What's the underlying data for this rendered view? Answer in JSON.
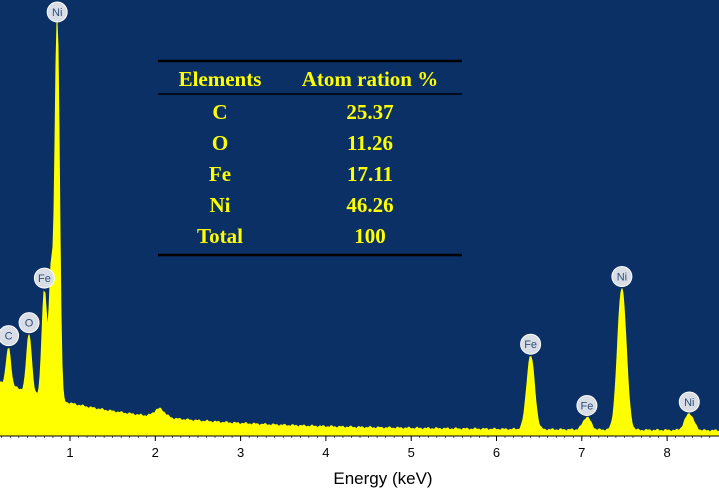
{
  "colors": {
    "plot_background": "#0a3066",
    "spectrum": "#ffff00",
    "table_text": "#ffff00",
    "table_rules": "#000000",
    "peak_badge": "#d8dde6",
    "axis_text": "#000000"
  },
  "chart_data": {
    "type": "area",
    "xlabel": "Energy (keV)",
    "ylabel": "",
    "xlim": [
      -0.1,
      8.6
    ],
    "xticks": [
      1,
      2,
      3,
      4,
      5,
      6,
      7,
      8
    ],
    "tick_labels": [
      "1",
      "2",
      "3",
      "4",
      "5",
      "6",
      "7",
      "8"
    ],
    "grid": false,
    "spectrum": {
      "background": {
        "base": 8,
        "decay_amp": 45,
        "decay_tau": 1.3,
        "tail_slope": 0.9
      },
      "peaks": [
        {
          "label": "C",
          "energy": 0.28,
          "height": 35,
          "sigma": 0.025
        },
        {
          "label": "O",
          "energy": 0.52,
          "height": 55,
          "sigma": 0.028
        },
        {
          "label": "Fe",
          "energy": 0.7,
          "height": 100,
          "sigma": 0.028
        },
        {
          "label": "Ni",
          "energy": 0.85,
          "height": 360,
          "sigma": 0.026
        },
        {
          "label": "",
          "energy": 0.78,
          "height": 120,
          "sigma": 0.025
        },
        {
          "label": "",
          "energy": 2.05,
          "height": 8,
          "sigma": 0.06
        },
        {
          "label": "Fe",
          "energy": 6.4,
          "height": 70,
          "sigma": 0.045
        },
        {
          "label": "Fe",
          "energy": 7.06,
          "height": 12,
          "sigma": 0.045
        },
        {
          "label": "Ni",
          "energy": 7.47,
          "height": 135,
          "sigma": 0.05
        },
        {
          "label": "Ni",
          "energy": 8.26,
          "height": 16,
          "sigma": 0.05
        }
      ]
    },
    "table": {
      "headers": [
        "Elements",
        "Atom ration %"
      ],
      "rows": [
        [
          "C",
          "25.37"
        ],
        [
          "O",
          "11.26"
        ],
        [
          "Fe",
          "17.11"
        ],
        [
          "Ni",
          "46.26"
        ],
        [
          "Total",
          "100"
        ]
      ]
    }
  }
}
